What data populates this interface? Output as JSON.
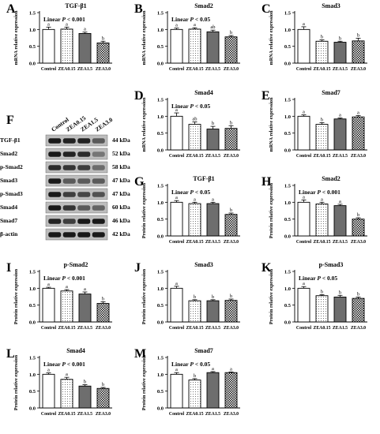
{
  "common": {
    "categories": [
      "Control",
      "ZEA0.15",
      "ZEA1.5",
      "ZEA3.0"
    ]
  },
  "chart_data": [
    {
      "panel": "A",
      "type": "bar",
      "title": "TGF-β1",
      "ylabel": "mRNA relative expression",
      "stat": "Linear P < 0.001",
      "ylim": [
        0,
        1.5
      ],
      "yticks": [
        "0.0",
        "0.5",
        "1.0",
        "1.5"
      ],
      "categories": [
        "Control",
        "ZEA0.15",
        "ZEA1.5",
        "ZEA3.0"
      ],
      "values": [
        1.0,
        1.01,
        0.88,
        0.6
      ],
      "errors": [
        0.07,
        0.06,
        0.04,
        0.05
      ],
      "letters": [
        "a",
        "a",
        "a",
        "b"
      ]
    },
    {
      "panel": "B",
      "type": "bar",
      "title": "Smad2",
      "ylabel": "mRNA relative expression",
      "stat": "Linear P < 0.05",
      "ylim": [
        0,
        1.5
      ],
      "yticks": [
        "0.0",
        "0.5",
        "1.0",
        "1.5"
      ],
      "categories": [
        "Control",
        "ZEA0.15",
        "ZEA1.5",
        "ZEA3.0"
      ],
      "values": [
        1.0,
        1.01,
        0.93,
        0.78
      ],
      "errors": [
        0.04,
        0.04,
        0.05,
        0.04
      ],
      "letters": [
        "a",
        "a",
        "ab",
        "b"
      ]
    },
    {
      "panel": "C",
      "type": "bar",
      "title": "Smad3",
      "ylabel": "mRNA relative expression",
      "stat": "",
      "ylim": [
        0,
        1.5
      ],
      "yticks": [
        "0.0",
        "0.5",
        "1.0",
        "1.5"
      ],
      "categories": [
        "Control",
        "ZEA0.15",
        "ZEA1.5",
        "ZEA3.0"
      ],
      "values": [
        1.0,
        0.65,
        0.62,
        0.66
      ],
      "errors": [
        0.08,
        0.04,
        0.03,
        0.08
      ],
      "letters": [
        "a",
        "b",
        "b",
        "b"
      ]
    },
    {
      "panel": "D",
      "type": "bar",
      "title": "Smad4",
      "ylabel": "mRNA relative expression",
      "stat": "Linear P < 0.05",
      "ylim": [
        0,
        1.5
      ],
      "yticks": [
        "0.0",
        "0.5",
        "1.0",
        "1.5"
      ],
      "categories": [
        "Control",
        "ZEA0.15",
        "ZEA1.5",
        "ZEA3.0"
      ],
      "values": [
        1.0,
        0.76,
        0.62,
        0.64
      ],
      "errors": [
        0.1,
        0.07,
        0.08,
        0.08
      ],
      "letters": [
        "a",
        "ab",
        "b",
        "b"
      ]
    },
    {
      "panel": "E",
      "type": "bar",
      "title": "Smad7",
      "ylabel": "mRNA relative expression",
      "stat": "",
      "ylim": [
        0,
        1.5
      ],
      "yticks": [
        "0.0",
        "0.5",
        "1.0",
        "1.5"
      ],
      "categories": [
        "Control",
        "ZEA0.15",
        "ZEA1.5",
        "ZEA3.0"
      ],
      "values": [
        1.0,
        0.76,
        0.92,
        0.98
      ],
      "errors": [
        0.04,
        0.05,
        0.03,
        0.04
      ],
      "letters": [
        "a",
        "b",
        "a",
        "a"
      ]
    },
    {
      "panel": "G",
      "type": "bar",
      "title": "TGF-β1",
      "ylabel": "Protein relative expression",
      "stat": "Linear P < 0.05",
      "ylim": [
        0,
        1.5
      ],
      "yticks": [
        "0.0",
        "0.5",
        "1.0",
        "1.5"
      ],
      "categories": [
        "Control",
        "ZEA0.15",
        "ZEA1.5",
        "ZEA3.0"
      ],
      "values": [
        1.0,
        0.96,
        0.96,
        0.64
      ],
      "errors": [
        0.05,
        0.04,
        0.04,
        0.04
      ],
      "letters": [
        "a",
        "a",
        "a",
        "b"
      ]
    },
    {
      "panel": "H",
      "type": "bar",
      "title": "Smad2",
      "ylabel": "Protein relative expression",
      "stat": "Linear P < 0.001",
      "ylim": [
        0,
        1.5
      ],
      "yticks": [
        "0.0",
        "0.5",
        "1.0",
        "1.5"
      ],
      "categories": [
        "Control",
        "ZEA0.15",
        "ZEA1.5",
        "ZEA3.0"
      ],
      "values": [
        1.0,
        0.95,
        0.9,
        0.5
      ],
      "errors": [
        0.07,
        0.05,
        0.04,
        0.04
      ],
      "letters": [
        "a",
        "a",
        "a",
        "b"
      ]
    },
    {
      "panel": "I",
      "type": "bar",
      "title": "p-Smad2",
      "ylabel": "Protein relative expression",
      "stat": "Linear P < 0.001",
      "ylim": [
        0,
        1.5
      ],
      "yticks": [
        "0.0",
        "0.5",
        "1.0",
        "1.5"
      ],
      "categories": [
        "Control",
        "ZEA0.15",
        "ZEA1.5",
        "ZEA3.0"
      ],
      "values": [
        1.0,
        0.92,
        0.83,
        0.55
      ],
      "errors": [
        0.03,
        0.04,
        0.06,
        0.05
      ],
      "letters": [
        "a",
        "a",
        "a",
        "b"
      ]
    },
    {
      "panel": "J",
      "type": "bar",
      "title": "Smad3",
      "ylabel": "Protein relative expression",
      "stat": "",
      "ylim": [
        0,
        1.5
      ],
      "yticks": [
        "0.0",
        "0.5",
        "1.0",
        "1.5"
      ],
      "categories": [
        "Control",
        "ZEA0.15",
        "ZEA1.5",
        "ZEA3.0"
      ],
      "values": [
        1.0,
        0.63,
        0.63,
        0.64
      ],
      "errors": [
        0.06,
        0.03,
        0.03,
        0.04
      ],
      "letters": [
        "a",
        "b",
        "b",
        "b"
      ]
    },
    {
      "panel": "K",
      "type": "bar",
      "title": "p-Smad3",
      "ylabel": "Protein relative expression",
      "stat": "Linear P < 0.05",
      "ylim": [
        0,
        1.5
      ],
      "yticks": [
        "0.0",
        "0.5",
        "1.0",
        "1.5"
      ],
      "categories": [
        "Control",
        "ZEA0.15",
        "ZEA1.5",
        "ZEA3.0"
      ],
      "values": [
        1.0,
        0.78,
        0.74,
        0.7
      ],
      "errors": [
        0.05,
        0.03,
        0.05,
        0.04
      ],
      "letters": [
        "a",
        "b",
        "b",
        "b"
      ]
    },
    {
      "panel": "L",
      "type": "bar",
      "title": "Smad4",
      "ylabel": "Protein relative expression",
      "stat": "Linear P < 0.001",
      "ylim": [
        0,
        1.5
      ],
      "yticks": [
        "0.0",
        "0.5",
        "1.0",
        "1.5"
      ],
      "categories": [
        "Control",
        "ZEA0.15",
        "ZEA1.5",
        "ZEA3.0"
      ],
      "values": [
        1.0,
        0.85,
        0.65,
        0.58
      ],
      "errors": [
        0.04,
        0.06,
        0.04,
        0.03
      ],
      "letters": [
        "a",
        "a",
        "b",
        "b"
      ]
    },
    {
      "panel": "M",
      "type": "bar",
      "title": "Smad7",
      "ylabel": "Protein relative expression",
      "stat": "Linear P < 0.05",
      "ylim": [
        0,
        1.5
      ],
      "yticks": [
        "0.0",
        "0.5",
        "1.0",
        "1.5"
      ],
      "categories": [
        "Control",
        "ZEA0.15",
        "ZEA1.5",
        "ZEA3.0"
      ],
      "values": [
        1.0,
        0.83,
        1.05,
        1.05
      ],
      "errors": [
        0.05,
        0.04,
        0.03,
        0.02
      ],
      "letters": [
        "a",
        "b",
        "a",
        "a"
      ]
    }
  ],
  "blot": {
    "panel": "F",
    "columns": [
      "Control",
      "ZEA0.15",
      "ZEA1.5",
      "ZEA3.0"
    ],
    "rows": [
      {
        "name": "TGF-β1",
        "kda": "44 kDa",
        "intensity": [
          1.0,
          0.95,
          0.95,
          0.65
        ]
      },
      {
        "name": "Smad2",
        "kda": "52 kDa",
        "intensity": [
          1.0,
          0.95,
          0.9,
          0.5
        ]
      },
      {
        "name": "p-Smad2",
        "kda": "58 kDa",
        "intensity": [
          0.9,
          0.85,
          0.8,
          0.55
        ]
      },
      {
        "name": "Smad3",
        "kda": "47 kDa",
        "intensity": [
          1.0,
          0.65,
          0.65,
          0.65
        ]
      },
      {
        "name": "p-Smad3",
        "kda": "47 kDa",
        "intensity": [
          1.0,
          0.8,
          0.75,
          0.7
        ]
      },
      {
        "name": "Smad4",
        "kda": "60 kDa",
        "intensity": [
          1.0,
          0.85,
          0.65,
          0.6
        ]
      },
      {
        "name": "Smad7",
        "kda": "46 kDa",
        "intensity": [
          0.95,
          0.8,
          1.0,
          1.0
        ]
      },
      {
        "name": "β-actin",
        "kda": "42 kDa",
        "intensity": [
          1.0,
          1.0,
          1.0,
          1.0
        ]
      }
    ]
  },
  "style": {
    "bar_fills": [
      "white",
      "dots",
      "#6e6e6e",
      "checker"
    ],
    "stroke": "#000000"
  }
}
